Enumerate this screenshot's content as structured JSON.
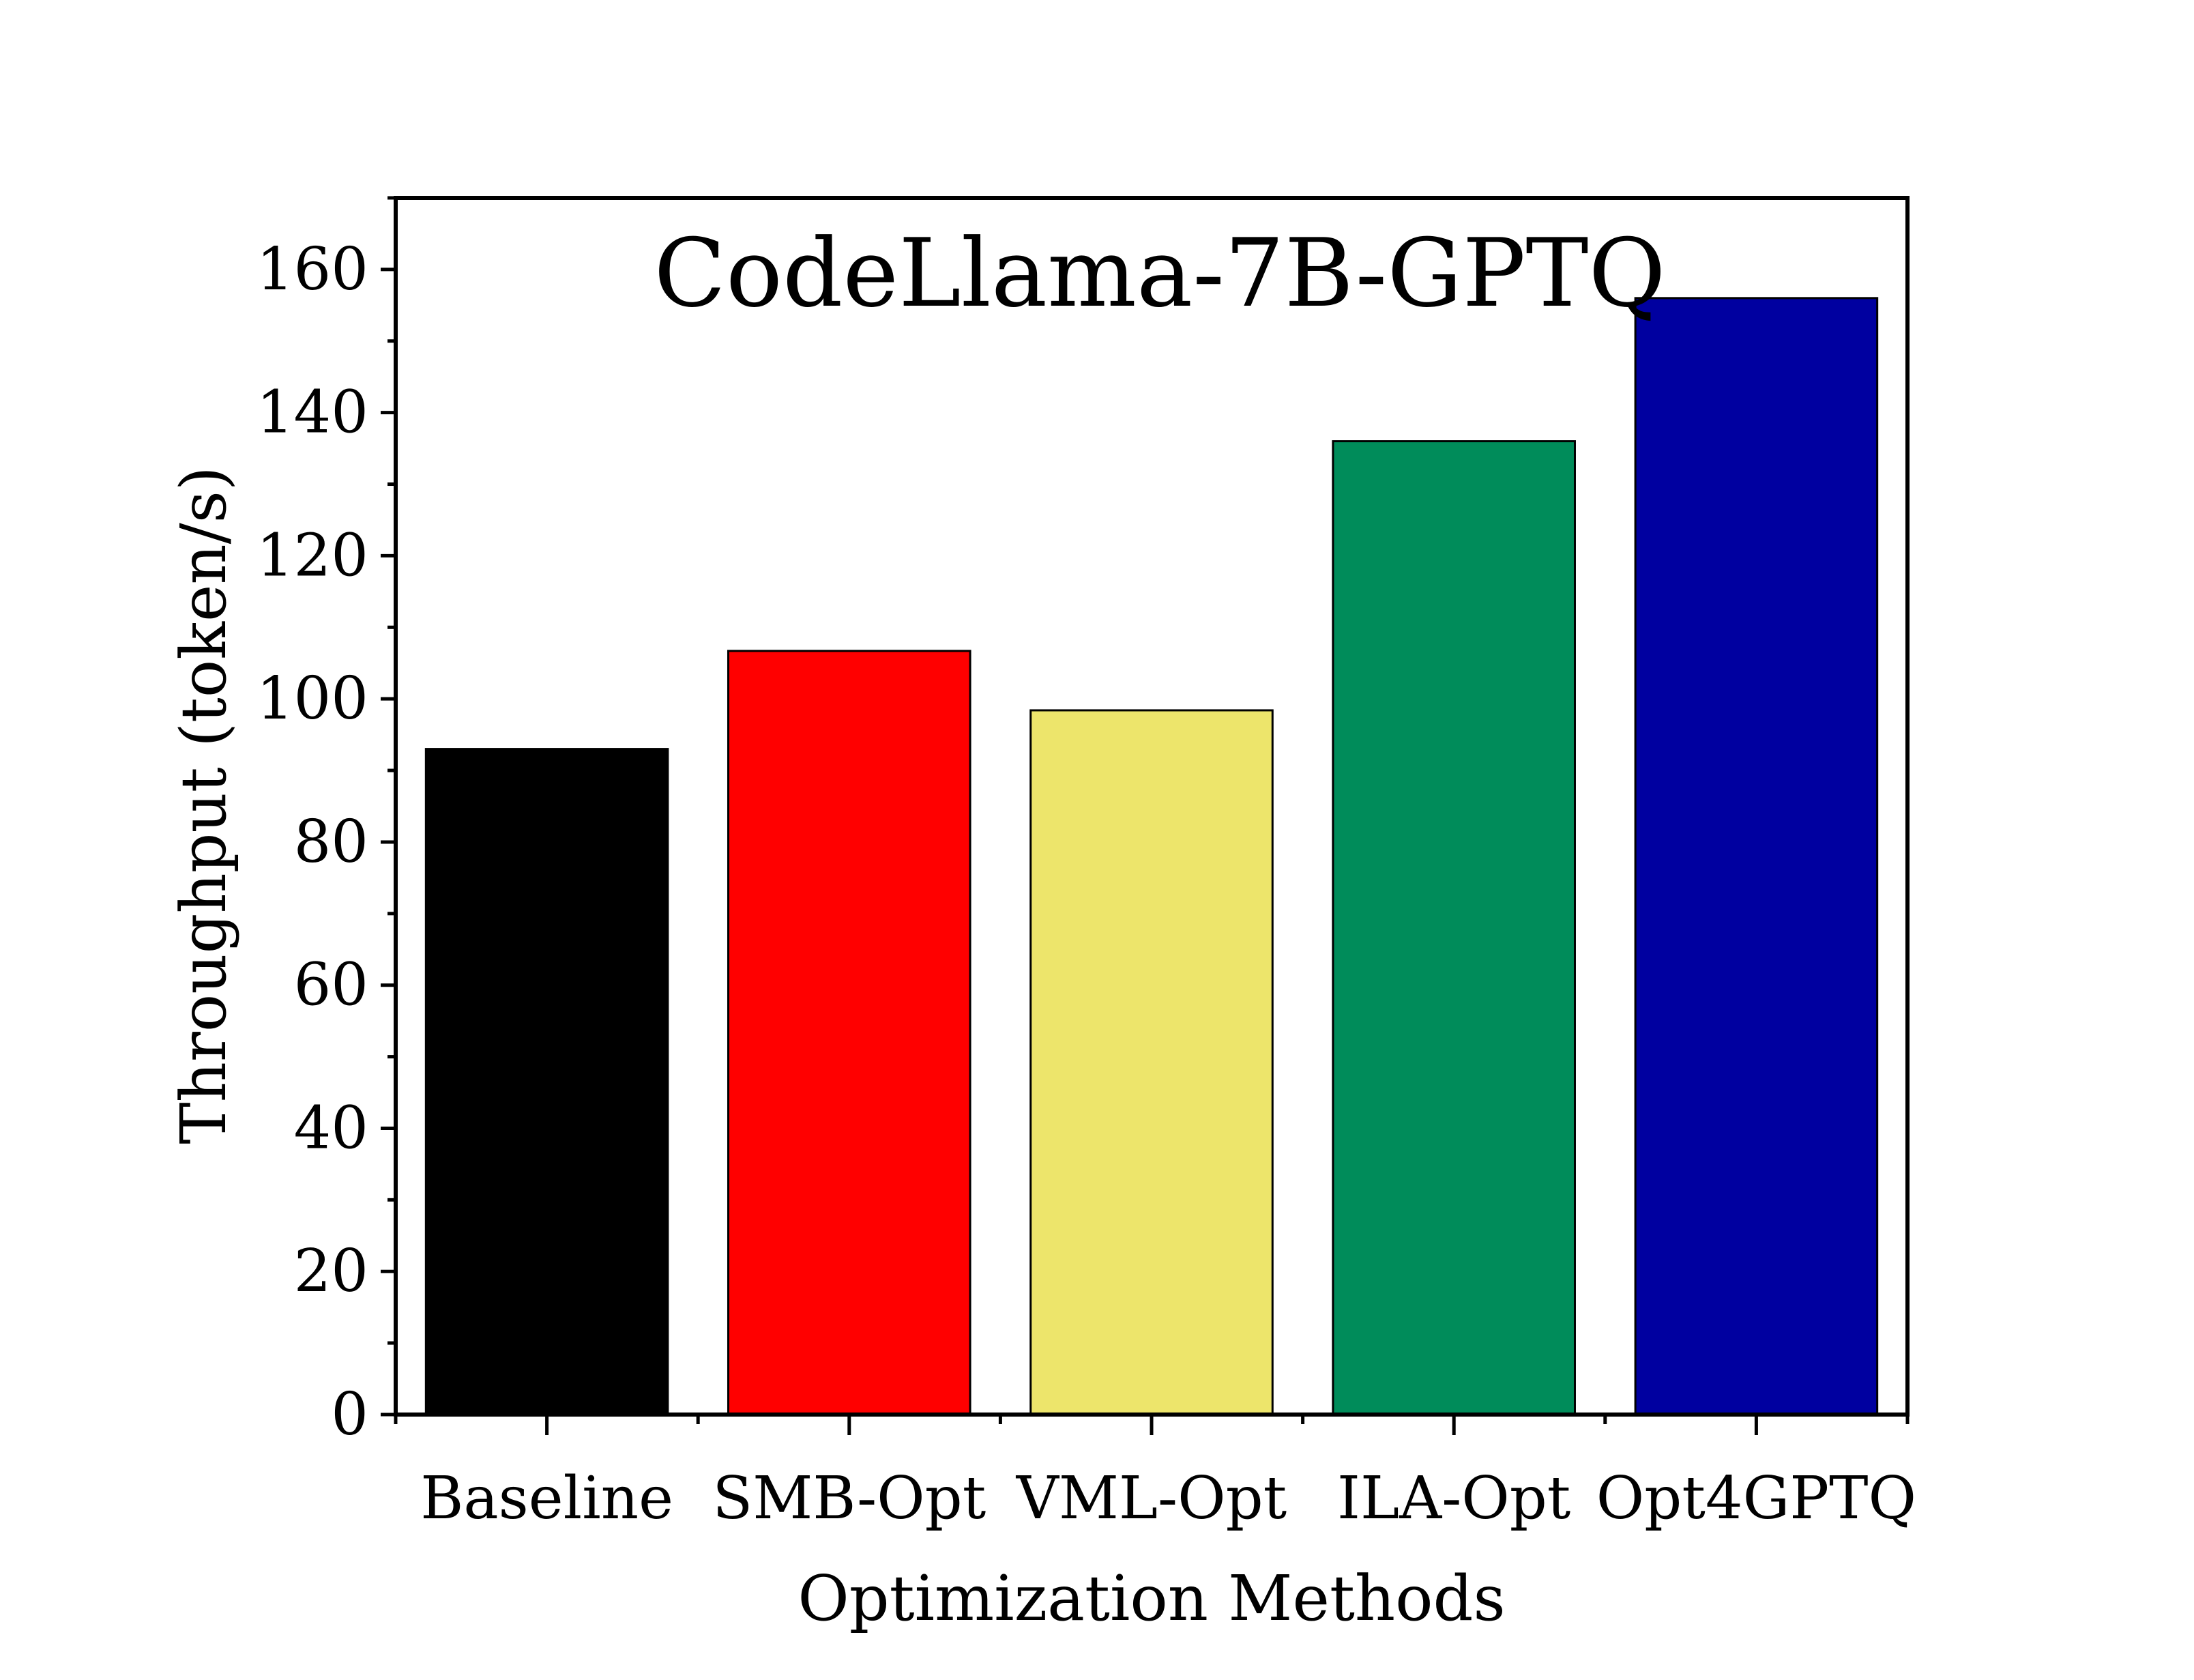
{
  "chart_data": {
    "type": "bar",
    "title": "CodeLlama-7B-GPTQ",
    "xlabel": "Optimization Methods",
    "ylabel": "Throughput (token/s)",
    "categories": [
      "Baseline",
      "SMB-Opt",
      "VML-Opt",
      "ILA-Opt",
      "Opt4GPTQ"
    ],
    "values": [
      93,
      106.7,
      98.4,
      136,
      156
    ],
    "colors": [
      "#000000",
      "#ff0000",
      "#ede56b",
      "#008c5a",
      "#0000a0"
    ],
    "ylim": [
      0,
      170
    ],
    "yticks": [
      0,
      20,
      40,
      60,
      80,
      100,
      120,
      140,
      160
    ],
    "ytick_labels": [
      "0",
      "20",
      "40",
      "60",
      "80",
      "100",
      "120",
      "140",
      "160"
    ],
    "grid": false,
    "legend": "none"
  }
}
